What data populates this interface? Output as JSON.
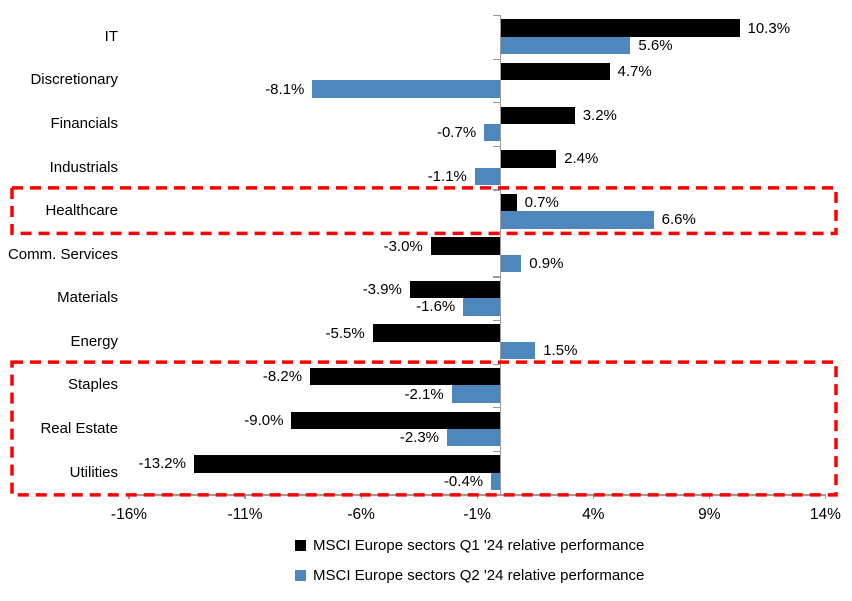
{
  "chart_data": {
    "type": "bar",
    "orientation": "horizontal",
    "title": "",
    "categories": [
      "IT",
      "Discretionary",
      "Financials",
      "Industrials",
      "Healthcare",
      "Comm. Services",
      "Materials",
      "Energy",
      "Staples",
      "Real Estate",
      "Utilities"
    ],
    "series": [
      {
        "name": "MSCI Europe sectors Q1 '24 relative performance",
        "color": "#000000",
        "values": [
          10.3,
          4.7,
          3.2,
          2.4,
          0.7,
          -3.0,
          -3.9,
          -5.5,
          -8.2,
          -9.0,
          -13.2
        ],
        "labels": [
          "10.3%",
          "4.7%",
          "3.2%",
          "2.4%",
          "0.7%",
          "-3.0%",
          "-3.9%",
          "-5.5%",
          "-8.2%",
          "-9.0%",
          "-13.2%"
        ]
      },
      {
        "name": "MSCI Europe sectors Q2 '24 relative performance",
        "color": "#4E86BE",
        "values": [
          5.6,
          -8.1,
          -0.7,
          -1.1,
          6.6,
          0.9,
          -1.6,
          1.5,
          -2.1,
          -2.3,
          -0.4
        ],
        "labels": [
          "5.6%",
          "-8.1%",
          "-0.7%",
          "-1.1%",
          "6.6%",
          "0.9%",
          "-1.6%",
          "1.5%",
          "-2.1%",
          "-2.3%",
          "-0.4%"
        ]
      }
    ],
    "x_axis": {
      "xlim": [
        -16,
        14
      ],
      "ticks": [
        -16,
        -11,
        -6,
        -1,
        4,
        9,
        14
      ],
      "tick_labels": [
        "-16%",
        "-11%",
        "-6%",
        "-1%",
        "4%",
        "9%",
        "14%"
      ]
    },
    "grid": false,
    "axis_color": "#9B9B9B",
    "legend": {
      "position": "bottom",
      "entries": [
        "MSCI Europe sectors Q1 '24 relative performance",
        "MSCI Europe sectors Q2 '24 relative performance"
      ]
    },
    "highlights": [
      {
        "categories": [
          "Healthcare"
        ],
        "color": "#FF0000",
        "style": "dashed"
      },
      {
        "categories": [
          "Staples",
          "Real Estate",
          "Utilities"
        ],
        "color": "#FF0000",
        "style": "dashed"
      }
    ]
  }
}
